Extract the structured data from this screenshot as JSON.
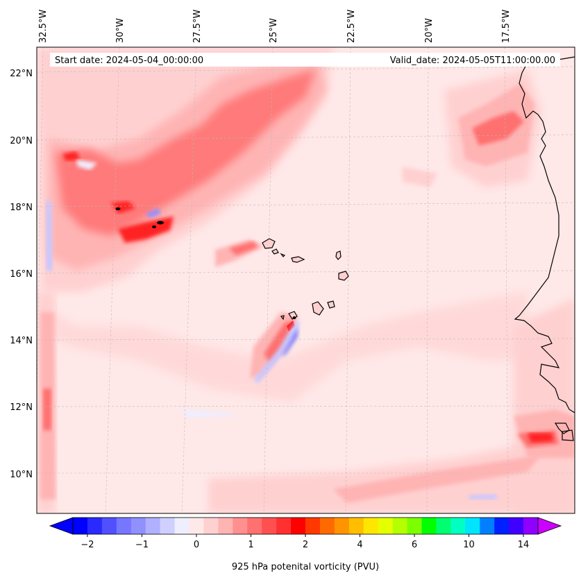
{
  "header": {
    "start_date": "Start date: 2024-05-04_00:00:00",
    "valid_date": "Valid_date: 2024-05-05T11:00:00.00"
  },
  "axes": {
    "longitude_ticks": [
      "32.5°W",
      "30°W",
      "27.5°W",
      "25°W",
      "22.5°W",
      "20°W",
      "17.5°W"
    ],
    "latitude_ticks": [
      "22°N",
      "20°N",
      "18°N",
      "16°N",
      "14°N",
      "12°N",
      "10°N"
    ]
  },
  "colorbar": {
    "title": "925 hPa potenital vorticity (PVU)",
    "tick_labels": [
      "−2",
      "−1",
      "0",
      "1",
      "2",
      "4",
      "6",
      "10",
      "14"
    ],
    "colors": [
      "#0000ff",
      "#2a2aff",
      "#5050ff",
      "#7676ff",
      "#9090ff",
      "#b0b0ff",
      "#d0d0ff",
      "#eeeeff",
      "#ffe8e8",
      "#ffd0d0",
      "#ffb4b4",
      "#ff9090",
      "#ff7070",
      "#ff5050",
      "#ff3030",
      "#ff0000",
      "#ff3800",
      "#ff6a00",
      "#ff9400",
      "#ffbe00",
      "#ffe600",
      "#e6ff00",
      "#b4ff00",
      "#7cff00",
      "#00ff00",
      "#00ff70",
      "#00ffc0",
      "#00e4ff",
      "#0080ff",
      "#0020ff",
      "#4000ff",
      "#9000ff"
    ],
    "under_color": "#0000ff",
    "over_color": "#cc00ff"
  },
  "map_colors": {
    "background": "#ffe8e8",
    "light": "#ffd0d0",
    "medium": "#ffb4b4",
    "strong": "#ff7070",
    "intense": "#ff2020",
    "negative": "#c8c8ff",
    "negative_strong": "#7070ff",
    "coast": "#000000"
  },
  "map_extent": {
    "lon_range_deg": [
      -33,
      -15.8
    ],
    "lat_range_deg": [
      8.8,
      22.8
    ]
  }
}
